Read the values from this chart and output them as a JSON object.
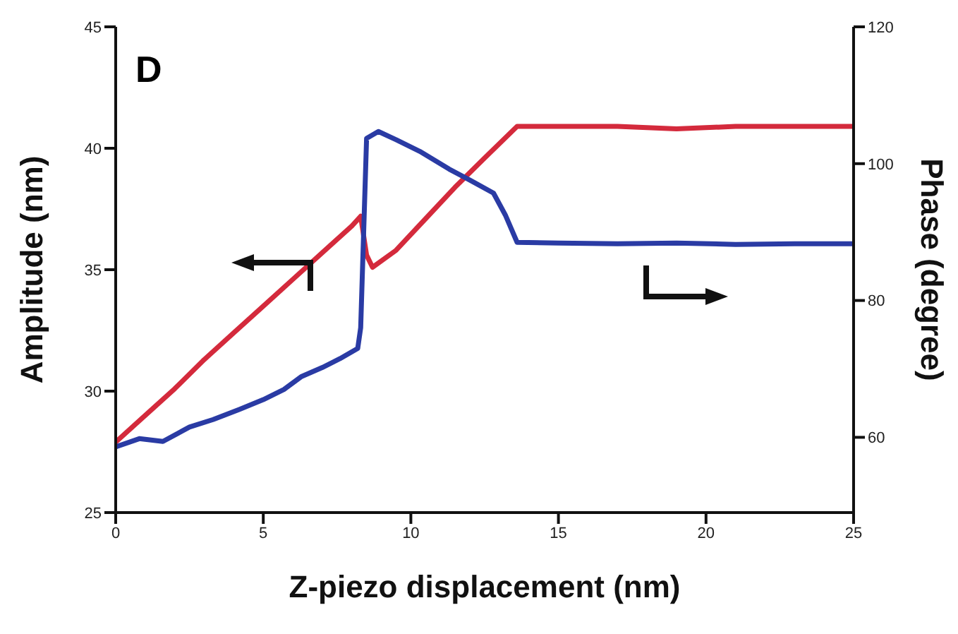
{
  "chart_data": {
    "type": "line",
    "xlabel": "Z-piezo displacement (nm)",
    "ylabel": "Amplitude (nm)",
    "y2label": "Phase (degree)",
    "annotations": [
      "D"
    ],
    "xlim": [
      0,
      25
    ],
    "xticks": [
      0,
      5,
      10,
      15,
      20,
      25
    ],
    "ylim": [
      25,
      45
    ],
    "yticks": [
      25,
      30,
      35,
      40,
      45
    ],
    "y2lim": [
      49,
      120
    ],
    "y2ticks": [
      60,
      80,
      100,
      120
    ],
    "marker": "none",
    "line_style": "solid",
    "series": [
      {
        "color": "#d42a3c",
        "x": [
          0,
          1,
          2,
          3,
          4,
          5,
          6,
          7,
          8,
          8.3,
          8.5,
          8.7,
          9.5,
          10.5,
          11.5,
          12.5,
          13.6,
          15,
          17,
          19,
          21,
          23,
          25
        ],
        "values": [
          27.9,
          29,
          30.1,
          31.3,
          32.4,
          33.5,
          34.6,
          35.7,
          36.8,
          37.2,
          35.6,
          35.1,
          35.8,
          37.1,
          38.4,
          39.6,
          40.9,
          40.9,
          40.9,
          40.8,
          40.9,
          40.9,
          40.9
        ]
      },
      {
        "color": "#2a3ba4",
        "axis": "y2",
        "x": [
          0,
          0.8,
          1.6,
          2.5,
          3.3,
          4.2,
          5,
          5.7,
          6.3,
          7,
          7.6,
          8.2,
          8.3,
          8.5,
          8.9,
          9.5,
          10.3,
          11.3,
          12,
          12.8,
          13.2,
          13.6,
          15,
          17,
          19,
          21,
          23,
          25
        ],
        "values": [
          58.6,
          59.8,
          59.4,
          61.5,
          62.6,
          64.1,
          65.5,
          67,
          68.9,
          70.2,
          71.5,
          73,
          76,
          103.7,
          104.7,
          103.5,
          101.8,
          99.2,
          97.6,
          95.7,
          92.5,
          88.5,
          88.4,
          88.3,
          88.4,
          88.2,
          88.3,
          88.3
        ]
      }
    ]
  }
}
